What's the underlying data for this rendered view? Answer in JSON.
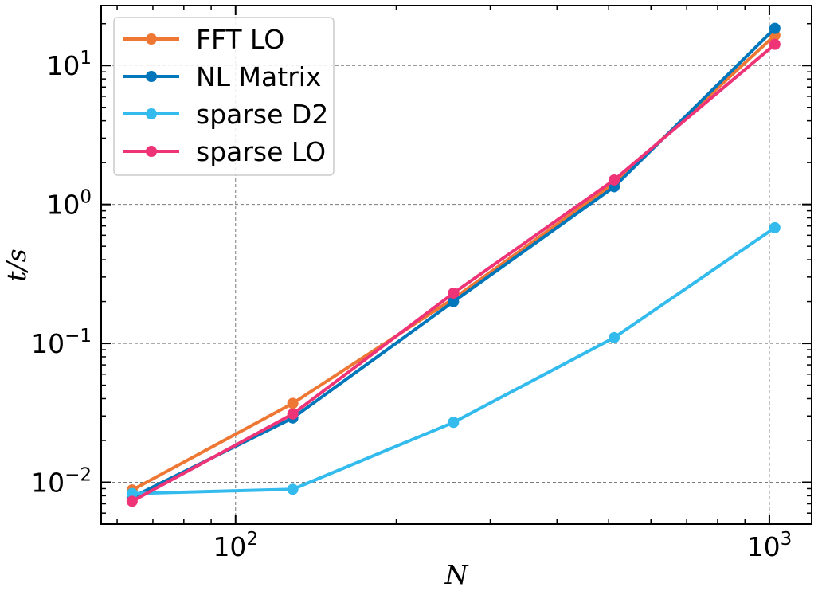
{
  "chart_data": {
    "type": "line",
    "x_scale": "log",
    "y_scale": "log",
    "xlabel": "N",
    "ylabel": "t/s",
    "xlim": [
      56,
      1200
    ],
    "ylim": [
      0.005,
      27
    ],
    "grid": true,
    "legend_position": "top-left",
    "x_ticks": [
      {
        "base": "10",
        "exp": "2"
      },
      {
        "base": "10",
        "exp": "3"
      }
    ],
    "y_ticks": [
      {
        "base": "10",
        "exp": "−2"
      },
      {
        "base": "10",
        "exp": "−1"
      },
      {
        "base": "10",
        "exp": "0"
      },
      {
        "base": "10",
        "exp": "1"
      }
    ],
    "x": [
      64,
      128,
      256,
      512,
      1024
    ],
    "series": [
      {
        "name": "FFT LO",
        "color": "#ee7733",
        "values": [
          0.0088,
          0.037,
          0.21,
          1.42,
          16.5
        ]
      },
      {
        "name": "NL Matrix",
        "color": "#0077bb",
        "values": [
          0.0078,
          0.029,
          0.2,
          1.34,
          18.5
        ]
      },
      {
        "name": "sparse D2",
        "color": "#33bbee",
        "values": [
          0.0083,
          0.0089,
          0.027,
          0.11,
          0.68
        ]
      },
      {
        "name": "sparse LO",
        "color": "#ee3377",
        "values": [
          0.0073,
          0.031,
          0.23,
          1.5,
          14.2
        ]
      }
    ]
  }
}
